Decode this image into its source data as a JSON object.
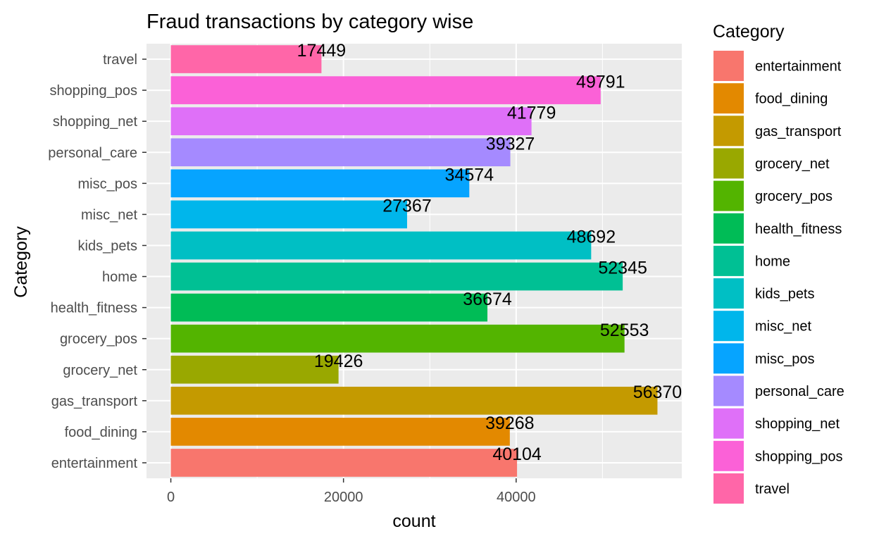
{
  "chart_data": {
    "type": "bar",
    "orientation": "horizontal",
    "title": "Fraud transactions by category wise",
    "xlabel": "count",
    "ylabel": "Category",
    "categories": [
      "entertainment",
      "food_dining",
      "gas_transport",
      "grocery_net",
      "grocery_pos",
      "health_fitness",
      "home",
      "kids_pets",
      "misc_net",
      "misc_pos",
      "personal_care",
      "shopping_net",
      "shopping_pos",
      "travel"
    ],
    "values": [
      40104,
      39268,
      56370,
      19426,
      52553,
      36674,
      52345,
      48692,
      27367,
      34574,
      39327,
      41779,
      49791,
      17449
    ],
    "data_labels": [
      "40104",
      "39268",
      "56370",
      "19426",
      "52553",
      "36674",
      "52345",
      "48692",
      "27367",
      "34574",
      "39327",
      "41779",
      "49791",
      "17449"
    ],
    "colors": [
      "#F8766D",
      "#E38900",
      "#C49A00",
      "#99A800",
      "#53B400",
      "#00BC56",
      "#00C094",
      "#00BFC4",
      "#00B6EB",
      "#06A4FF",
      "#A58AFF",
      "#DF70F8",
      "#FB61D7",
      "#FF66A8"
    ],
    "xticks": [
      0,
      20000,
      40000
    ],
    "xtick_labels": [
      "0",
      "20000",
      "40000"
    ],
    "xlim": [
      -2818.5,
      59188.5
    ],
    "grid": true,
    "legend": {
      "title": "Category",
      "position": "right",
      "entries": [
        "entertainment",
        "food_dining",
        "gas_transport",
        "grocery_net",
        "grocery_pos",
        "health_fitness",
        "home",
        "kids_pets",
        "misc_net",
        "misc_pos",
        "personal_care",
        "shopping_net",
        "shopping_pos",
        "travel"
      ]
    },
    "panel_background": "#EBEBEB",
    "grid_color": "#FFFFFF"
  }
}
